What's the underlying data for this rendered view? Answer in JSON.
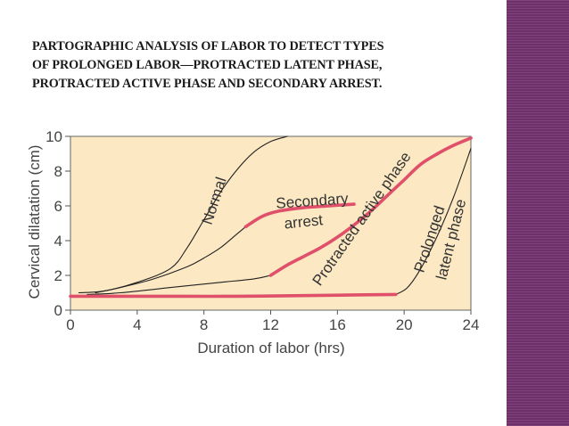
{
  "slide": {
    "title_lines": [
      "PARTOGRAPHIC ANALYSIS OF LABOR TO DETECT TYPES",
      "OF PROLONGED LABOR—PROTRACTED LATENT PHASE,",
      "PROTRACTED ACTIVE PHASE AND SECONDARY ARREST."
    ],
    "accent_color": "#6e2f6a"
  },
  "chart_data": {
    "type": "line",
    "title": "",
    "xlabel": "Duration of labor (hrs)",
    "ylabel": "Cervical dilatation (cm)",
    "xlim": [
      0,
      24
    ],
    "ylim": [
      0,
      10
    ],
    "xticks": [
      0,
      4,
      8,
      12,
      16,
      20,
      24
    ],
    "yticks": [
      0,
      2,
      4,
      6,
      8,
      10
    ],
    "grid": false,
    "legend": "none",
    "highlight_color": "#e0506a",
    "curve_color": "#222222",
    "series": [
      {
        "name": "",
        "style": "thin",
        "x": [
          0.5,
          2,
          4,
          6,
          7,
          8,
          9,
          10,
          11,
          12,
          13
        ],
        "y": [
          1.0,
          1.1,
          1.6,
          2.4,
          3.6,
          5.2,
          6.8,
          8.1,
          9.1,
          9.7,
          10
        ]
      },
      {
        "name": "",
        "style": "thin",
        "x": [
          1.5,
          3,
          5,
          7,
          8,
          9,
          10,
          10.5
        ],
        "y": [
          1.0,
          1.3,
          1.8,
          2.5,
          3.0,
          3.6,
          4.4,
          4.8
        ]
      },
      {
        "name": "",
        "style": "thin",
        "x": [
          1,
          3,
          6,
          9,
          11,
          12
        ],
        "y": [
          0.9,
          1.0,
          1.3,
          1.6,
          1.8,
          2.0
        ]
      },
      {
        "name": "",
        "style": "thin",
        "x": [
          19.5,
          20.2,
          21,
          22,
          23,
          24
        ],
        "y": [
          0.9,
          1.3,
          2.4,
          4.3,
          6.6,
          9.3
        ]
      },
      {
        "name": "Secondary arrest",
        "style": "highlight",
        "x": [
          10.5,
          11.5,
          12.5,
          14,
          15.5,
          17
        ],
        "y": [
          4.8,
          5.4,
          5.7,
          5.9,
          6.0,
          6.1
        ]
      },
      {
        "name": "Protracted active phase",
        "style": "highlight",
        "x": [
          12,
          13,
          14,
          15,
          16,
          17,
          18,
          19,
          20,
          21,
          22,
          23,
          24
        ],
        "y": [
          2.0,
          2.6,
          3.1,
          3.6,
          4.2,
          4.9,
          5.7,
          6.6,
          7.5,
          8.4,
          9.0,
          9.5,
          9.9
        ]
      },
      {
        "name": "Prolonged latent phase",
        "style": "highlight",
        "x": [
          0,
          5,
          10,
          15,
          19.5
        ],
        "y": [
          0.8,
          0.8,
          0.8,
          0.85,
          0.9
        ]
      }
    ],
    "annotations": [
      {
        "lines": [
          "Normal"
        ],
        "x": 8.9,
        "y": 6.2,
        "rotate": -72
      },
      {
        "lines": [
          "Secondary"
        ],
        "x": 14.5,
        "y": 6.0,
        "rotate": -4
      },
      {
        "lines": [
          "arrest"
        ],
        "x": 14.0,
        "y": 4.8,
        "rotate": -6
      },
      {
        "lines": [
          "Protracted active phase"
        ],
        "x": 17.7,
        "y": 5.1,
        "rotate": -55
      },
      {
        "lines": [
          "Prolonged"
        ],
        "x": 21.8,
        "y": 4.0,
        "rotate": -72
      },
      {
        "lines": [
          "latent phase"
        ],
        "x": 23.1,
        "y": 4.0,
        "rotate": -76
      }
    ]
  }
}
